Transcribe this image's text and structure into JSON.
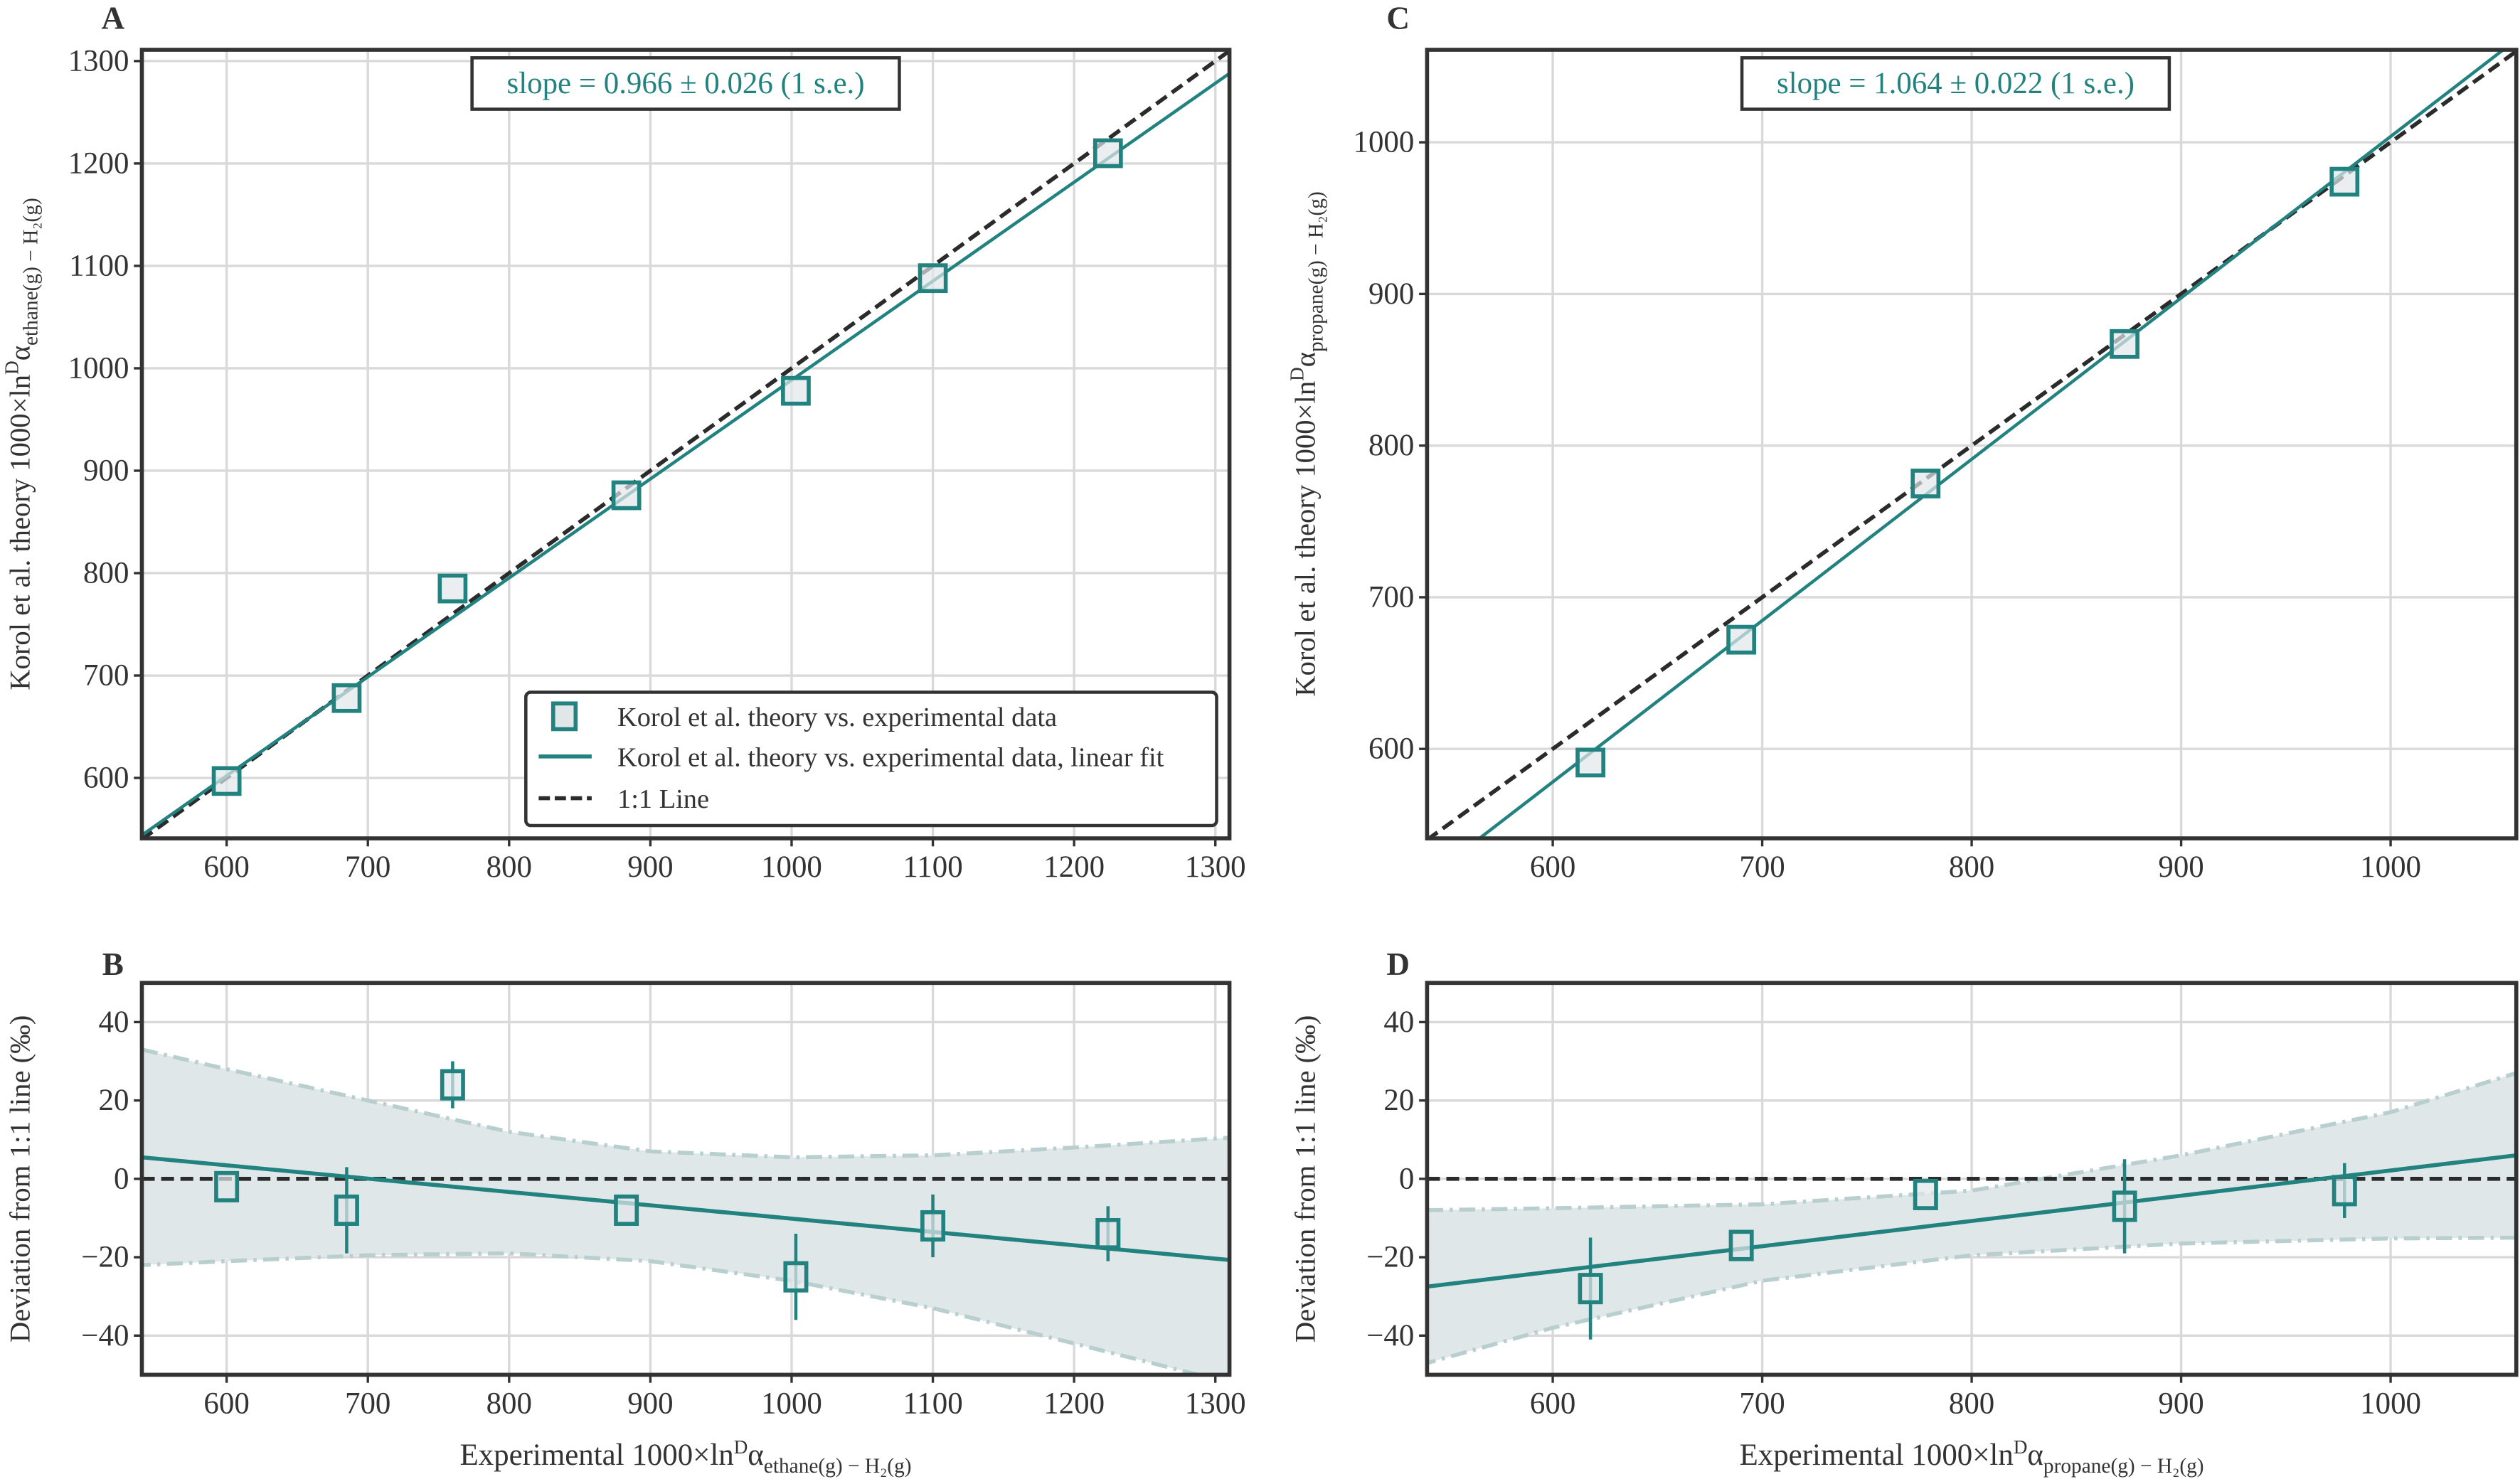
{
  "chart_data": [
    {
      "panel": "A",
      "type": "scatter",
      "ylabel": {
        "main": "Korol et al. theory 1000×ln",
        "sup": "D",
        "alpha": "α",
        "sub": "ethane(g) − H₂(g)"
      },
      "xlim": [
        540,
        1310
      ],
      "ylim": [
        541,
        1311
      ],
      "xticks": [
        600,
        700,
        800,
        900,
        1000,
        1100,
        1200,
        1300
      ],
      "yticks": [
        600,
        700,
        800,
        900,
        1000,
        1100,
        1200,
        1300
      ],
      "grid": true,
      "annotation": "slope = 0.966 ± 0.026 (1 s.e.)",
      "points": {
        "x": [
          600,
          685,
          760,
          883,
          1003,
          1100,
          1224
        ],
        "y": [
          597,
          678,
          785,
          876,
          978,
          1088,
          1210
        ]
      },
      "fit": {
        "slope": 0.966,
        "intercept": 22.5
      },
      "one_to_one": true,
      "legend": {
        "placement": "lower-right",
        "entries": [
          "Korol et al. theory vs. experimental data",
          "Korol et al. theory vs. experimental data, linear fit",
          "1:1 Line"
        ]
      }
    },
    {
      "panel": "B",
      "type": "scatter",
      "ylabel": {
        "main": "Deviation from 1:1 line (‰)"
      },
      "xlabel": {
        "main": "Experimental 1000×ln",
        "sup": "D",
        "alpha": "α",
        "sub": "ethane(g) − H₂(g)"
      },
      "xlim": [
        540,
        1310
      ],
      "ylim": [
        -50,
        50
      ],
      "xticks": [
        600,
        700,
        800,
        900,
        1000,
        1100,
        1200,
        1300
      ],
      "yticks": [
        -40,
        -20,
        0,
        20,
        40
      ],
      "grid": true,
      "points": {
        "x": [
          600,
          685,
          760,
          883,
          1003,
          1100,
          1224
        ],
        "y": [
          -2,
          -8,
          24,
          -8,
          -25,
          -12,
          -14
        ],
        "err": [
          0,
          11,
          6,
          0,
          11,
          8,
          7
        ]
      },
      "fit": {
        "x": [
          540,
          1310
        ],
        "y": [
          5.5,
          -20.7
        ]
      },
      "band": {
        "x": [
          540,
          600,
          700,
          800,
          900,
          1000,
          1100,
          1200,
          1310
        ],
        "upper": [
          33,
          28,
          20,
          12,
          7,
          5.5,
          6,
          8,
          10.5
        ],
        "lower": [
          -22,
          -21,
          -19.5,
          -19,
          -21,
          -26,
          -33,
          -42,
          -52
        ]
      }
    },
    {
      "panel": "C",
      "type": "scatter",
      "ylabel": {
        "main": "Korol et al. theory 1000×ln",
        "sup": "D",
        "alpha": "α",
        "sub": "propane(g) − H₂(g)"
      },
      "xlim": [
        540,
        1060
      ],
      "ylim": [
        541,
        1061
      ],
      "xticks": [
        600,
        700,
        800,
        900,
        1000
      ],
      "yticks": [
        600,
        700,
        800,
        900,
        1000
      ],
      "grid": true,
      "annotation": "slope = 1.064 ± 0.022 (1 s.e.)",
      "points": {
        "x": [
          618,
          690,
          778,
          873,
          978
        ],
        "y": [
          591,
          672,
          775,
          867,
          974
        ]
      },
      "fit": {
        "slope": 1.064,
        "intercept": -60.2
      },
      "one_to_one": true
    },
    {
      "panel": "D",
      "type": "scatter",
      "ylabel": {
        "main": "Deviation from 1:1 line (‰)"
      },
      "xlabel": {
        "main": "Experimental 1000×ln",
        "sup": "D",
        "alpha": "α",
        "sub": "propane(g) − H₂(g)"
      },
      "xlim": [
        540,
        1060
      ],
      "ylim": [
        -50,
        50
      ],
      "xticks": [
        600,
        700,
        800,
        900,
        1000
      ],
      "yticks": [
        -40,
        -20,
        0,
        20,
        40
      ],
      "grid": true,
      "points": {
        "x": [
          618,
          690,
          778,
          873,
          978
        ],
        "y": [
          -28,
          -17,
          -4,
          -7,
          -3
        ],
        "err": [
          13,
          0,
          0,
          12,
          7
        ]
      },
      "fit": {
        "x": [
          540,
          1060
        ],
        "y": [
          -27.5,
          6
        ]
      },
      "band": {
        "x": [
          540,
          600,
          700,
          800,
          900,
          1000,
          1060
        ],
        "upper": [
          -8,
          -7.5,
          -6.5,
          -3,
          6,
          17,
          27
        ],
        "lower": [
          -47,
          -38,
          -26,
          -19.5,
          -16.5,
          -15.2,
          -15
        ]
      }
    }
  ],
  "colors": {
    "series": "#22827f",
    "band_fill": "#dfe7e8",
    "band_edge": "#b9cfcf",
    "one_to_one": "#2b2b2b",
    "grid": "#d9d9d9",
    "frame": "#333333",
    "marker_fill": "#e1e7e9"
  }
}
